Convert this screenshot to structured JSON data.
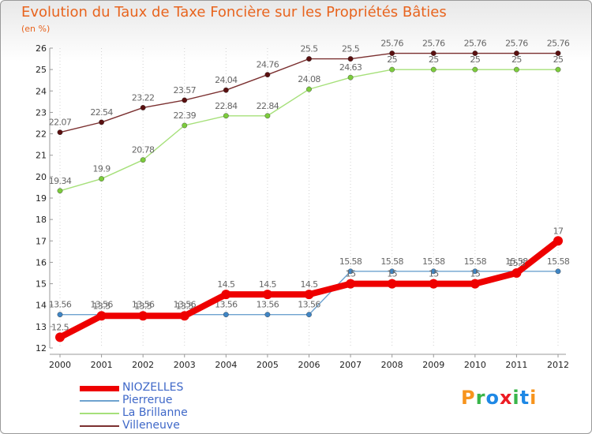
{
  "title": "Evolution du Taux de Taxe Foncière sur les Propriétés Bâties",
  "units_label": "(en %)",
  "brand": {
    "text": "Proxiti",
    "colors": [
      "#f7941d",
      "#39b54a",
      "#1e88e5",
      "#ec1c24",
      "#39b54a",
      "#1e88e5",
      "#f7941d"
    ]
  },
  "chart_data": {
    "type": "line",
    "title": "Evolution du Taux de Taxe Foncière sur les Propriétés Bâties",
    "ylabel": "(en %)",
    "xlabel": "",
    "categories": [
      "2000",
      "2001",
      "2002",
      "2003",
      "2004",
      "2005",
      "2006",
      "2007",
      "2008",
      "2009",
      "2010",
      "2011",
      "2012"
    ],
    "ylim": [
      12,
      26
    ],
    "yticks": [
      "12",
      "13",
      "14",
      "15",
      "16",
      "17",
      "18",
      "19",
      "20",
      "21",
      "22",
      "23",
      "24",
      "25",
      "26"
    ],
    "legend_position": "bottom-left",
    "series": [
      {
        "name": "Villeneuve",
        "color": "#7b3030",
        "marker": "#5a1010",
        "values": [
          22.07,
          22.54,
          23.22,
          23.57,
          24.04,
          24.76,
          25.5,
          25.5,
          25.76,
          25.76,
          25.76,
          25.76,
          25.76
        ],
        "labels": [
          "22.07",
          "22.54",
          "23.22",
          "23.57",
          "24.04",
          "24.76",
          "25.5",
          "25.5",
          "25.76",
          "25.76",
          "25.76",
          "25.76",
          "25.76"
        ]
      },
      {
        "name": "La Brillanne",
        "color": "#a6e07a",
        "marker": "#7ccc3c",
        "values": [
          19.34,
          19.9,
          20.78,
          22.39,
          22.84,
          22.84,
          24.08,
          24.63,
          25,
          25,
          25,
          25,
          25
        ],
        "labels": [
          "19.34",
          "19.9",
          "20.78",
          "22.39",
          "22.84",
          "22.84",
          "24.08",
          "24.63",
          "25",
          "25",
          "25",
          "25",
          "25"
        ]
      },
      {
        "name": "Pierrerue",
        "color": "#6ea2cf",
        "marker": "#3f85c4",
        "values": [
          13.56,
          13.56,
          13.56,
          13.56,
          13.56,
          13.56,
          13.56,
          15.58,
          15.58,
          15.58,
          15.58,
          15.58,
          15.58
        ],
        "labels": [
          "13.56",
          "13.56",
          "13.56",
          "13.56",
          "13.56",
          "13.56",
          "13.56",
          "15.58",
          "15.58",
          "15.58",
          "15.58",
          "15.58",
          "15.58"
        ]
      },
      {
        "name": "NIOZELLES",
        "color": "#ee0000",
        "marker": "#ee0000",
        "values": [
          12.5,
          13.5,
          13.5,
          13.5,
          14.5,
          14.5,
          14.5,
          15,
          15,
          15,
          15,
          15.5,
          17
        ],
        "labels": [
          "12.5",
          "13.5",
          "13.5",
          "13.5",
          "14.5",
          "14.5",
          "14.5",
          "15",
          "15",
          "15",
          "15",
          "15.5",
          "17"
        ]
      }
    ]
  }
}
